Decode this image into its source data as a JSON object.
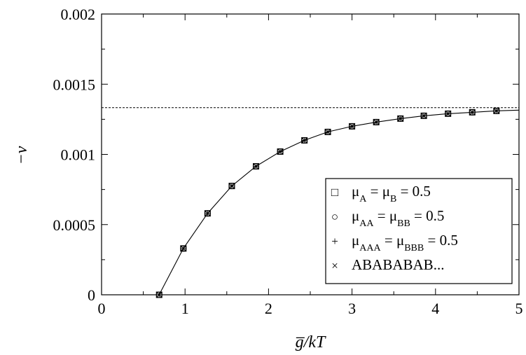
{
  "chart_data": {
    "type": "scatter",
    "xlabel": "g̅/kT",
    "ylabel": "−ν",
    "xlim": [
      0,
      5
    ],
    "ylim": [
      0,
      0.002
    ],
    "x_ticks": [
      "0",
      "1",
      "2",
      "3",
      "4",
      "5"
    ],
    "y_ticks": [
      "0",
      "0.0005",
      "0.001",
      "0.0015",
      "0.002"
    ],
    "grid": false,
    "legend_position": "lower-right",
    "x": [
      0.69,
      0.98,
      1.27,
      1.56,
      1.85,
      2.14,
      2.43,
      2.71,
      3.0,
      3.29,
      3.58,
      3.86,
      4.15,
      4.44,
      4.73
    ],
    "fit_curve": {
      "style": "solid",
      "x": [
        0.69,
        0.98,
        1.27,
        1.56,
        1.85,
        2.14,
        2.43,
        2.71,
        3.0,
        3.29,
        3.58,
        3.86,
        4.15,
        4.44,
        4.73,
        5.0
      ],
      "y": [
        0.0,
        0.00033,
        0.00058,
        0.000775,
        0.000915,
        0.00102,
        0.0011,
        0.00116,
        0.0012,
        0.00123,
        0.001255,
        0.001275,
        0.00129,
        0.0013,
        0.00131,
        0.001315
      ]
    },
    "asymptote": {
      "style": "dashed",
      "y": 0.001333
    },
    "series": [
      {
        "marker": "square",
        "sym": "□",
        "name_main": "μ",
        "name_sub1": "A",
        "name_mid": " = μ",
        "name_sub2": "B",
        "name_end": " = 0.5",
        "values": [
          0.0,
          0.00033,
          0.00058,
          0.000775,
          0.000915,
          0.00102,
          0.0011,
          0.00116,
          0.0012,
          0.00123,
          0.001255,
          0.001275,
          0.00129,
          0.0013,
          0.00131
        ]
      },
      {
        "marker": "circle",
        "sym": "○",
        "name_main": "μ",
        "name_sub1": "AA",
        "name_mid": " = μ",
        "name_sub2": "BB",
        "name_end": " = 0.5",
        "values": [
          0.0,
          0.00033,
          0.00058,
          0.000775,
          0.000915,
          0.00102,
          0.0011,
          0.00116,
          0.0012,
          0.00123,
          0.001255,
          0.001275,
          0.00129,
          0.0013,
          0.00131
        ]
      },
      {
        "marker": "plus",
        "sym": "+",
        "name_main": "μ",
        "name_sub1": "AAA",
        "name_mid": " = μ",
        "name_sub2": "BBB",
        "name_end": " = 0.5",
        "values": [
          0.0,
          0.00033,
          0.00058,
          0.000775,
          0.000915,
          0.00102,
          0.0011,
          0.00116,
          0.0012,
          0.00123,
          0.001255,
          0.001275,
          0.00129,
          0.0013,
          0.00131
        ]
      },
      {
        "marker": "cross",
        "sym": "×",
        "name_main": "ABABABAB...",
        "name_sub1": "",
        "name_mid": "",
        "name_sub2": "",
        "name_end": "",
        "values": [
          0.0,
          0.00033,
          0.00058,
          0.000775,
          0.000915,
          0.00102,
          0.0011,
          0.00116,
          0.0012,
          0.00123,
          0.001255,
          0.001275,
          0.00129,
          0.0013,
          0.00131
        ]
      }
    ]
  }
}
